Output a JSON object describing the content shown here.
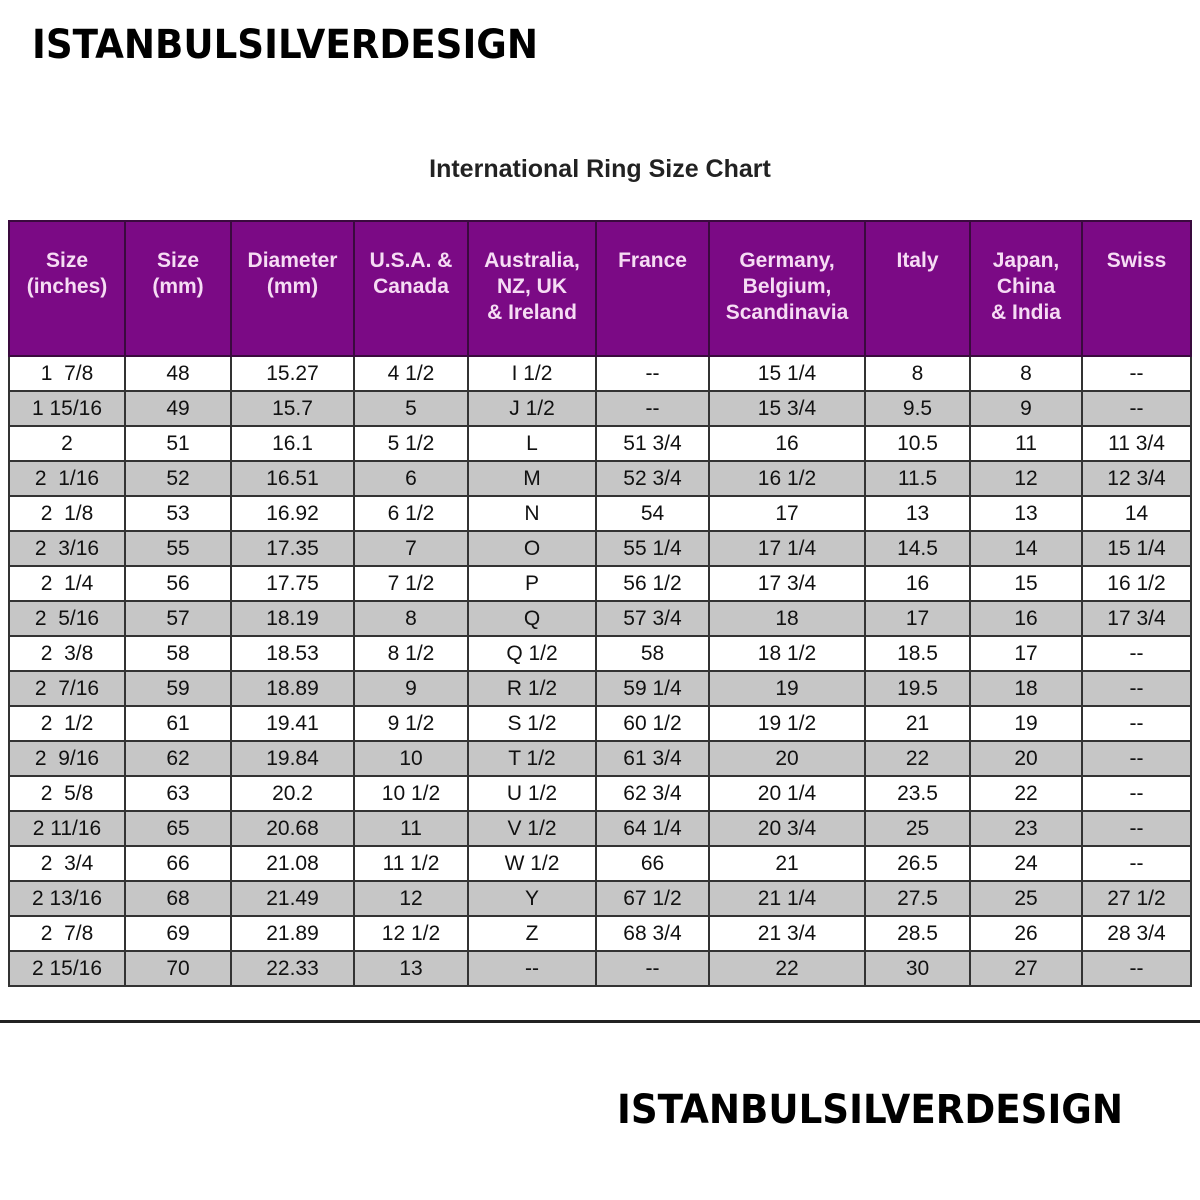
{
  "brand": "ISTANBULSILVERDESIGN",
  "title": "International Ring Size Chart",
  "colors": {
    "header_bg": "#7b0a85",
    "header_text": "#f6dcf4",
    "alt_row": "#c6c6c6"
  },
  "columns": [
    "Size\n(inches)",
    "Size\n(mm)",
    "Diameter\n(mm)",
    "U.S.A. &\nCanada",
    "Australia,\nNZ, UK\n& Ireland",
    "France",
    "Germany,\nBelgium,\nScandinavia",
    "Italy",
    "Japan,\nChina\n& India",
    "Swiss"
  ],
  "rows": [
    [
      "1  7/8",
      "48",
      "15.27",
      "4 1/2",
      "I 1/2",
      "--",
      "15 1/4",
      "8",
      "8",
      "--"
    ],
    [
      "1 15/16",
      "49",
      "15.7",
      "5",
      "J 1/2",
      "--",
      "15 3/4",
      "9.5",
      "9",
      "--"
    ],
    [
      "2",
      "51",
      "16.1",
      "5 1/2",
      "L",
      "51 3/4",
      "16",
      "10.5",
      "11",
      "11 3/4"
    ],
    [
      "2  1/16",
      "52",
      "16.51",
      "6",
      "M",
      "52 3/4",
      "16 1/2",
      "11.5",
      "12",
      "12 3/4"
    ],
    [
      "2  1/8",
      "53",
      "16.92",
      "6 1/2",
      "N",
      "54",
      "17",
      "13",
      "13",
      "14"
    ],
    [
      "2  3/16",
      "55",
      "17.35",
      "7",
      "O",
      "55 1/4",
      "17 1/4",
      "14.5",
      "14",
      "15 1/4"
    ],
    [
      "2  1/4",
      "56",
      "17.75",
      "7 1/2",
      "P",
      "56 1/2",
      "17 3/4",
      "16",
      "15",
      "16 1/2"
    ],
    [
      "2  5/16",
      "57",
      "18.19",
      "8",
      "Q",
      "57 3/4",
      "18",
      "17",
      "16",
      "17 3/4"
    ],
    [
      "2  3/8",
      "58",
      "18.53",
      "8 1/2",
      "Q 1/2",
      "58",
      "18 1/2",
      "18.5",
      "17",
      "--"
    ],
    [
      "2  7/16",
      "59",
      "18.89",
      "9",
      "R 1/2",
      "59 1/4",
      "19",
      "19.5",
      "18",
      "--"
    ],
    [
      "2  1/2",
      "61",
      "19.41",
      "9 1/2",
      "S 1/2",
      "60 1/2",
      "19 1/2",
      "21",
      "19",
      "--"
    ],
    [
      "2  9/16",
      "62",
      "19.84",
      "10",
      "T 1/2",
      "61 3/4",
      "20",
      "22",
      "20",
      "--"
    ],
    [
      "2  5/8",
      "63",
      "20.2",
      "10 1/2",
      "U 1/2",
      "62 3/4",
      "20 1/4",
      "23.5",
      "22",
      "--"
    ],
    [
      "2 11/16",
      "65",
      "20.68",
      "11",
      "V 1/2",
      "64 1/4",
      "20 3/4",
      "25",
      "23",
      "--"
    ],
    [
      "2  3/4",
      "66",
      "21.08",
      "11 1/2",
      "W 1/2",
      "66",
      "21",
      "26.5",
      "24",
      "--"
    ],
    [
      "2 13/16",
      "68",
      "21.49",
      "12",
      "Y",
      "67 1/2",
      "21 1/4",
      "27.5",
      "25",
      "27 1/2"
    ],
    [
      "2  7/8",
      "69",
      "21.89",
      "12 1/2",
      "Z",
      "68 3/4",
      "21 3/4",
      "28.5",
      "26",
      "28 3/4"
    ],
    [
      "2 15/16",
      "70",
      "22.33",
      "13",
      "--",
      "--",
      "22",
      "30",
      "27",
      "--"
    ]
  ]
}
